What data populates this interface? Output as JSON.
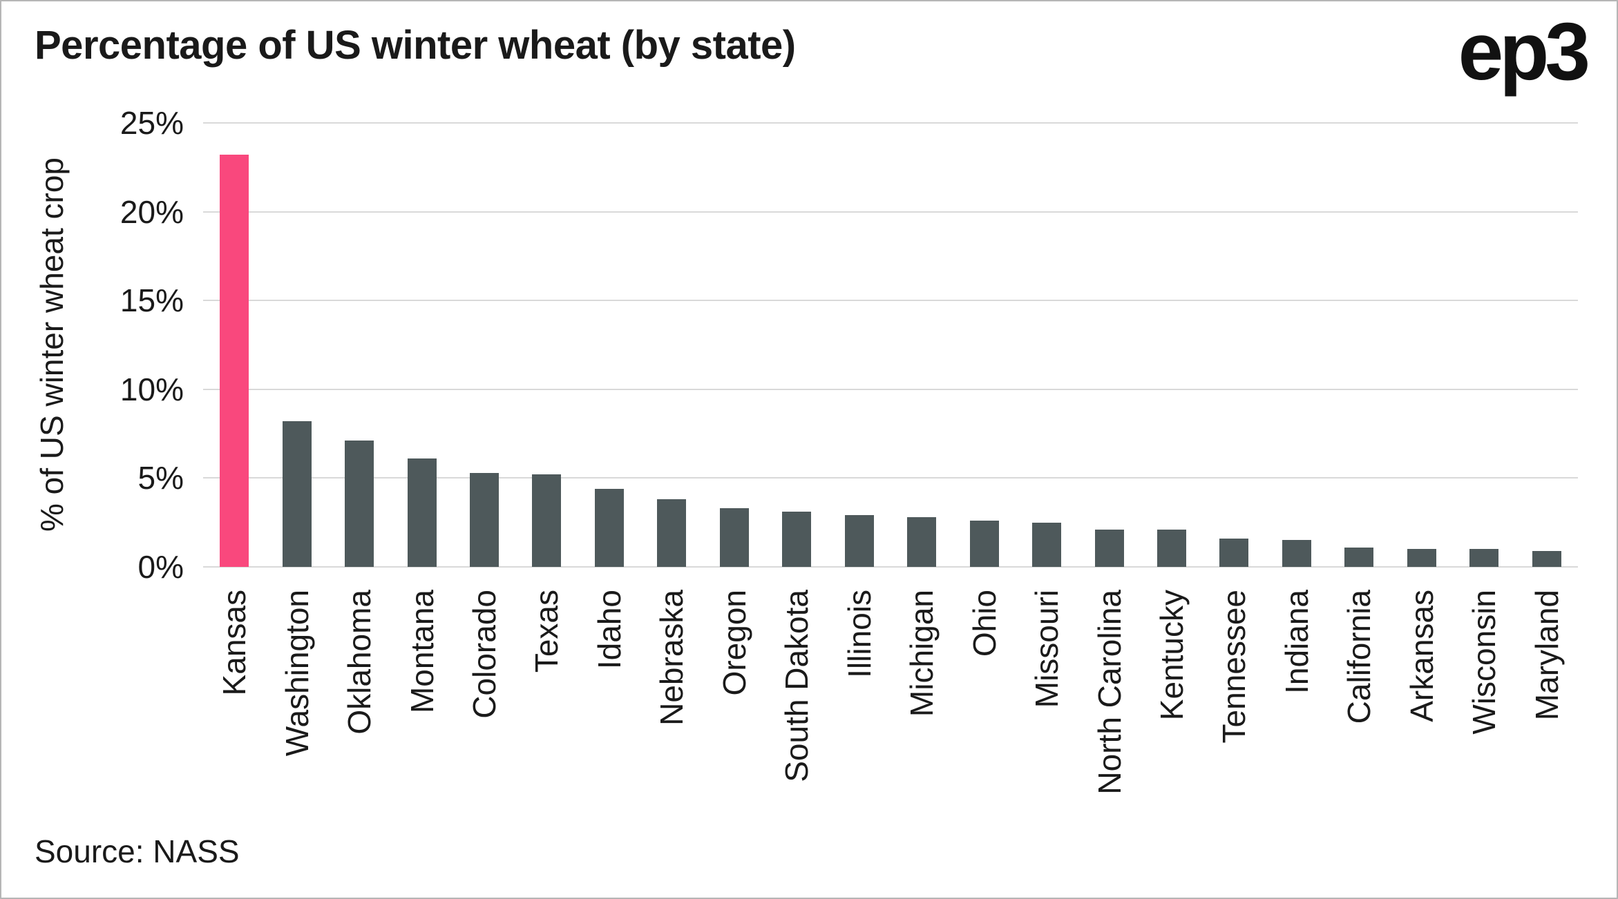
{
  "chart_data": {
    "type": "bar",
    "title": "Percentage of US winter wheat (by state)",
    "ylabel": "% of US winter wheat crop",
    "xlabel": "",
    "categories": [
      "Kansas",
      "Washington",
      "Oklahoma",
      "Montana",
      "Colorado",
      "Texas",
      "Idaho",
      "Nebraska",
      "Oregon",
      "South Dakota",
      "Illinois",
      "Michigan",
      "Ohio",
      "Missouri",
      "North Carolina",
      "Kentucky",
      "Tennessee",
      "Indiana",
      "California",
      "Arkansas",
      "Wisconsin",
      "Maryland"
    ],
    "values": [
      23.2,
      8.2,
      7.1,
      6.1,
      5.3,
      5.2,
      4.4,
      3.8,
      3.3,
      3.1,
      2.9,
      2.8,
      2.6,
      2.5,
      2.1,
      2.1,
      1.6,
      1.5,
      1.1,
      1.0,
      1.0,
      0.9
    ],
    "ylim": [
      0,
      25
    ],
    "yticks": [
      0,
      5,
      10,
      15,
      20,
      25
    ],
    "ytick_labels": [
      "0%",
      "5%",
      "10%",
      "15%",
      "20%",
      "25%"
    ],
    "grid": "horizontal",
    "legend": "none",
    "highlight_category": "Kansas",
    "colors": {
      "bar": "#4e595b",
      "highlight": "#f9487d",
      "gridline": "#d9d9d9",
      "text": "#1a1a1a"
    }
  },
  "logo": {
    "text": "ep3"
  },
  "source": {
    "text": "Source: NASS"
  }
}
